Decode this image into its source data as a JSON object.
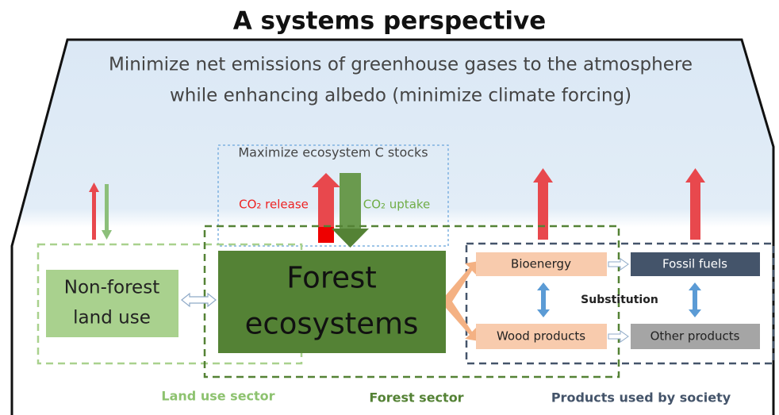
{
  "title": "A systems perspective",
  "goal": [
    "Minimize net emissions of greenhouse gases to the atmosphere",
    "while enhancing albedo (minimize climate forcing)"
  ],
  "ecosystem_goal": "Maximize ecosystem C stocks",
  "co2_release": "CO₂ release",
  "co2_uptake": "CO₂ uptake",
  "nodes": {
    "non_forest": [
      "Non-forest",
      "land use"
    ],
    "forest": [
      "Forest",
      "ecosystems"
    ],
    "bioenergy": "Bioenergy",
    "fossil_fuels": "Fossil fuels",
    "wood_products": "Wood products",
    "other_products": "Other products",
    "substitution": "Substitution"
  },
  "sectors": {
    "land_use": "Land use sector",
    "forest": "Forest sector",
    "products": "Products used by society"
  }
}
